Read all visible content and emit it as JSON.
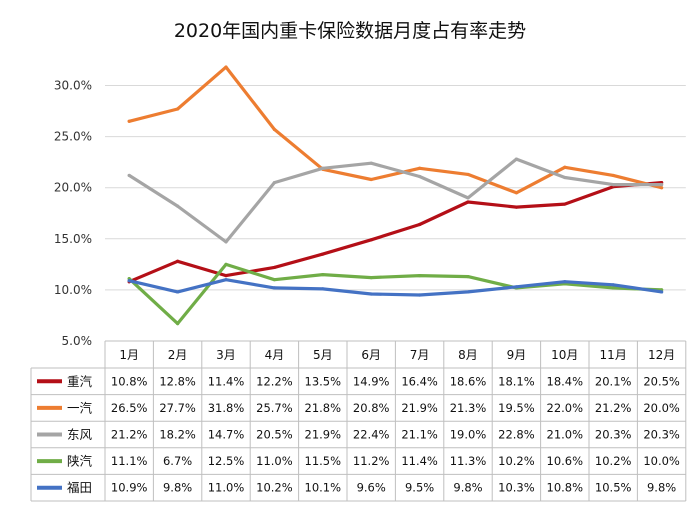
{
  "chart_data": {
    "type": "line",
    "title": "2020年国内重卡保险数据月度占有率走势",
    "categories": [
      "1月",
      "2月",
      "3月",
      "4月",
      "5月",
      "6月",
      "7月",
      "8月",
      "9月",
      "10月",
      "11月",
      "12月"
    ],
    "ylim": [
      5.0,
      32.0
    ],
    "yticks": [
      "5.0%",
      "10.0%",
      "15.0%",
      "20.0%",
      "25.0%",
      "30.0%"
    ],
    "ytick_values": [
      5,
      10,
      15,
      20,
      25,
      30
    ],
    "grid": true,
    "legend": "data table",
    "series": [
      {
        "name": "重汽",
        "color": "#b40f17",
        "values": [
          10.8,
          12.8,
          11.4,
          12.2,
          13.5,
          14.9,
          16.4,
          18.6,
          18.1,
          18.4,
          20.1,
          20.5
        ],
        "labels": [
          "10.8%",
          "12.8%",
          "11.4%",
          "12.2%",
          "13.5%",
          "14.9%",
          "16.4%",
          "18.6%",
          "18.1%",
          "18.4%",
          "20.1%",
          "20.5%"
        ]
      },
      {
        "name": "一汽",
        "color": "#ed7d31",
        "values": [
          26.5,
          27.7,
          31.8,
          25.7,
          21.8,
          20.8,
          21.9,
          21.3,
          19.5,
          22.0,
          21.2,
          20.0
        ],
        "labels": [
          "26.5%",
          "27.7%",
          "31.8%",
          "25.7%",
          "21.8%",
          "20.8%",
          "21.9%",
          "21.3%",
          "19.5%",
          "22.0%",
          "21.2%",
          "20.0%"
        ]
      },
      {
        "name": "东风",
        "color": "#a5a5a5",
        "values": [
          21.2,
          18.2,
          14.7,
          20.5,
          21.9,
          22.4,
          21.1,
          19.0,
          22.8,
          21.0,
          20.3,
          20.3
        ],
        "labels": [
          "21.2%",
          "18.2%",
          "14.7%",
          "20.5%",
          "21.9%",
          "22.4%",
          "21.1%",
          "19.0%",
          "22.8%",
          "21.0%",
          "20.3%",
          "20.3%"
        ]
      },
      {
        "name": "陕汽",
        "color": "#70ad47",
        "values": [
          11.1,
          6.7,
          12.5,
          11.0,
          11.5,
          11.2,
          11.4,
          11.3,
          10.2,
          10.6,
          10.2,
          10.0
        ],
        "labels": [
          "11.1%",
          "6.7%",
          "12.5%",
          "11.0%",
          "11.5%",
          "11.2%",
          "11.4%",
          "11.3%",
          "10.2%",
          "10.6%",
          "10.2%",
          "10.0%"
        ]
      },
      {
        "name": "福田",
        "color": "#4472c4",
        "values": [
          10.9,
          9.8,
          11.0,
          10.2,
          10.1,
          9.6,
          9.5,
          9.8,
          10.3,
          10.8,
          10.5,
          9.8
        ],
        "labels": [
          "10.9%",
          "9.8%",
          "11.0%",
          "10.2%",
          "10.1%",
          "9.6%",
          "9.5%",
          "9.8%",
          "10.3%",
          "10.8%",
          "10.5%",
          "9.8%"
        ]
      }
    ]
  }
}
